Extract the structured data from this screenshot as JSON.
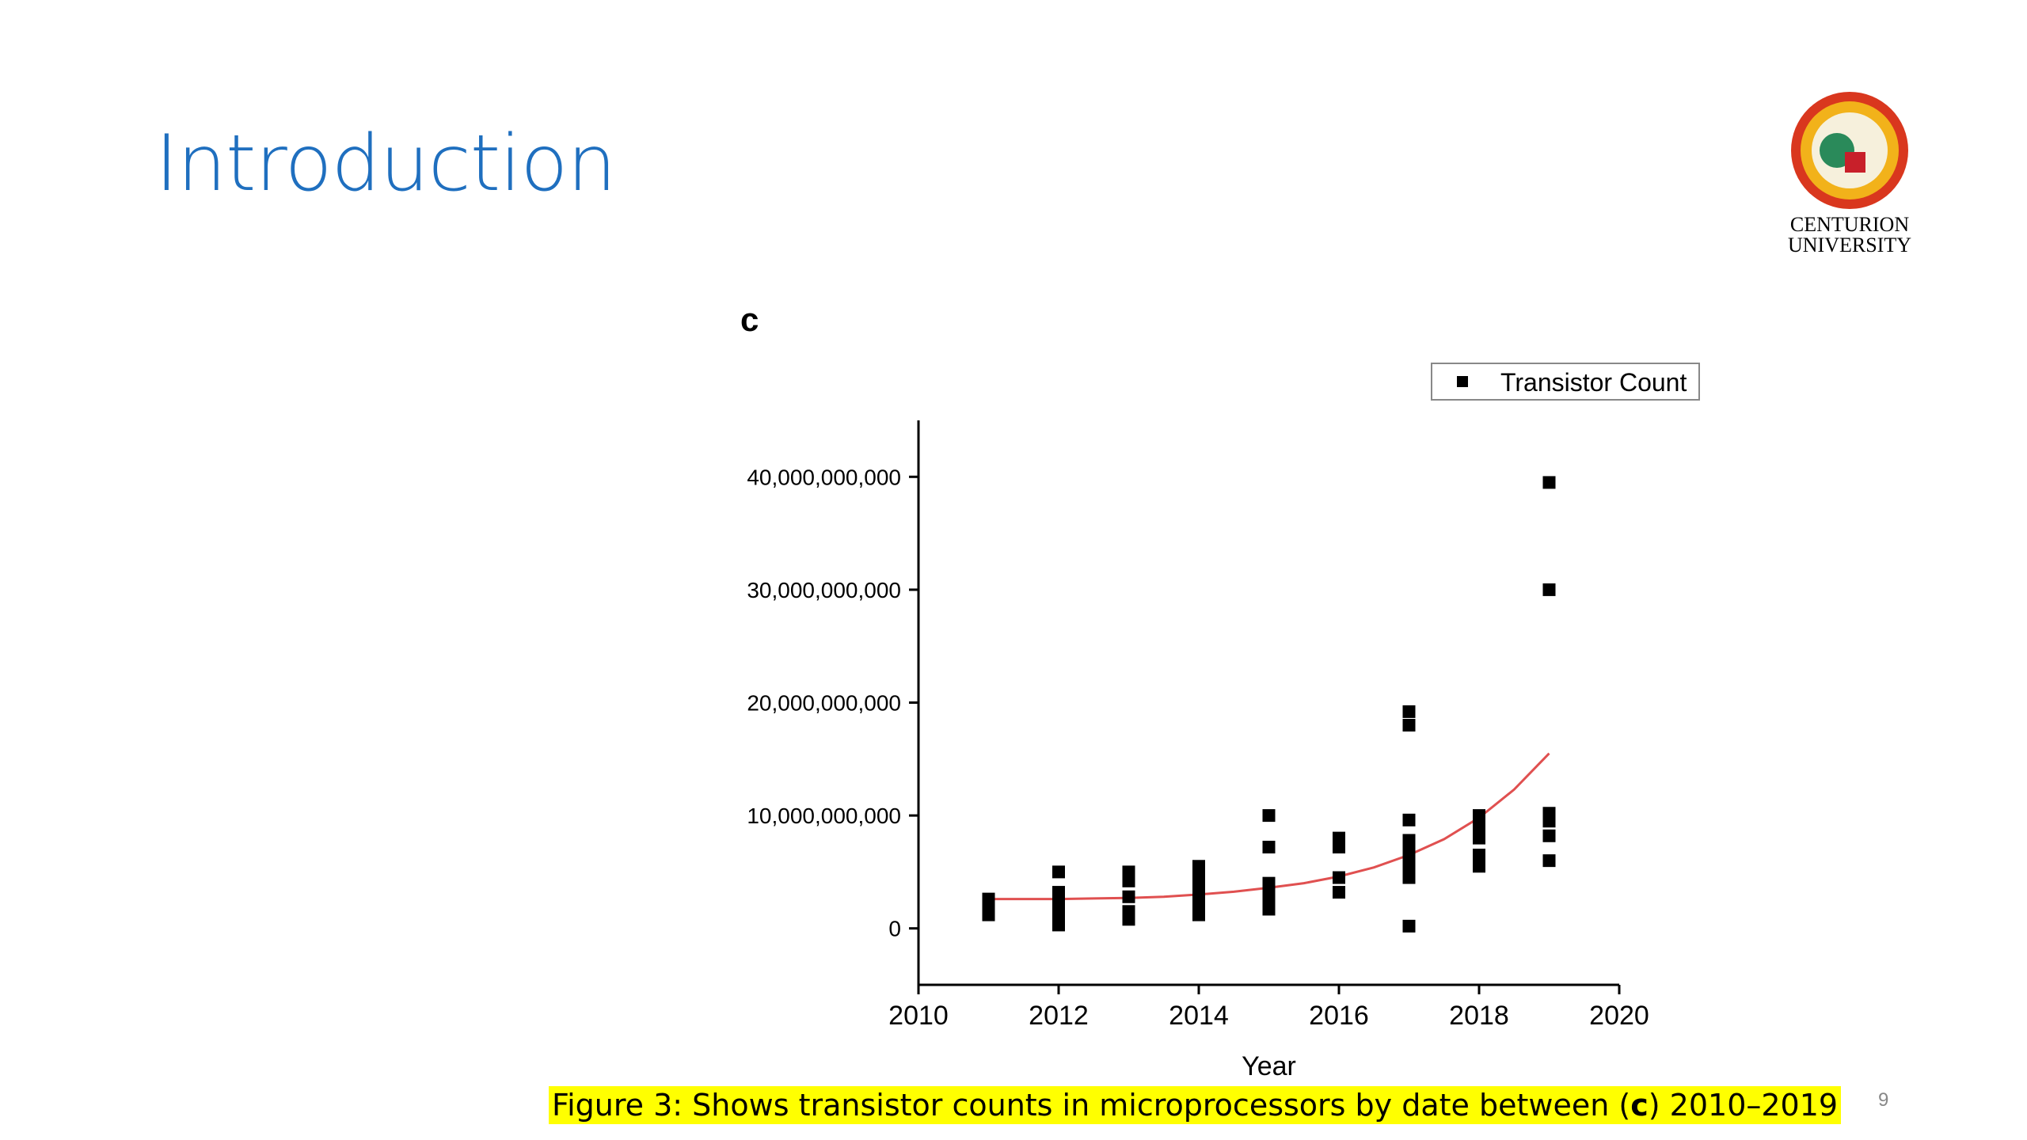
{
  "title": "Introduction",
  "logo": {
    "line1": "CENTURION",
    "line2": "UNIVERSITY"
  },
  "caption": {
    "before": "Figure 3: Shows transistor counts in microprocessors by date between (",
    "bold": "c",
    "after": ") 2010–2019"
  },
  "page_number": "9",
  "chart_data": {
    "type": "scatter",
    "panel_label": "c",
    "x_label": "Year",
    "xlim": [
      2010,
      2020
    ],
    "xticks": [
      2010,
      2012,
      2014,
      2016,
      2018,
      2020
    ],
    "ylim": [
      -5000000000.0,
      45000000000.0
    ],
    "yticks": [
      0,
      {
        "value": 10000000000,
        "label": "10,000,000,000"
      },
      {
        "value": 20000000000,
        "label": "20,000,000,000"
      },
      {
        "value": 30000000000,
        "label": "30,000,000,000"
      },
      {
        "value": 40000000000,
        "label": "40,000,000,000"
      }
    ],
    "legend": "top-right",
    "series": [
      {
        "name": "Transistor Count",
        "color": "#000000",
        "x": [
          2011,
          2011,
          2011,
          2012,
          2012,
          2012,
          2012,
          2012,
          2012,
          2013,
          2013,
          2013,
          2013,
          2013,
          2014,
          2014,
          2014,
          2014,
          2014,
          2014,
          2015,
          2015,
          2015,
          2015,
          2015,
          2015,
          2016,
          2016,
          2016,
          2016,
          2017,
          2017,
          2017,
          2017,
          2017,
          2017,
          2017,
          2017,
          2017,
          2018,
          2018,
          2018,
          2018,
          2018,
          2019,
          2019,
          2019,
          2019,
          2019,
          2019
        ],
        "values": [
          1200000000.0,
          1800000000.0,
          2600000000.0,
          5000000000.0,
          3200000000.0,
          2500000000.0,
          1800000000.0,
          1000000000.0,
          300000000.0,
          5000000000.0,
          4200000000.0,
          2800000000.0,
          1500000000.0,
          800000000.0,
          5500000000.0,
          4500000000.0,
          3500000000.0,
          2800000000.0,
          1800000000.0,
          1200000000.0,
          10000000000.0,
          7200000000.0,
          4000000000.0,
          3200000000.0,
          2500000000.0,
          1700000000.0,
          8000000000.0,
          7200000000.0,
          4500000000.0,
          3200000000.0,
          19200000000.0,
          18000000000.0,
          9600000000.0,
          7800000000.0,
          7000000000.0,
          6000000000.0,
          5500000000.0,
          4500000000.0,
          200000000.0,
          10000000000.0,
          9000000000.0,
          8000000000.0,
          6500000000.0,
          5500000000.0,
          39500000000.0,
          30000000000.0,
          10200000000.0,
          9500000000.0,
          8200000000.0,
          6000000000.0
        ]
      }
    ],
    "fit": {
      "color": "#e05050",
      "x": [
        2011,
        2011.5,
        2012,
        2012.5,
        2013,
        2013.5,
        2014,
        2014.5,
        2015,
        2015.5,
        2016,
        2016.5,
        2017,
        2017.5,
        2018,
        2018.5,
        2019
      ],
      "values": [
        2600000000.0,
        2600000000.0,
        2600000000.0,
        2650000000.0,
        2700000000.0,
        2800000000.0,
        3000000000.0,
        3250000000.0,
        3600000000.0,
        4000000000.0,
        4600000000.0,
        5400000000.0,
        6500000000.0,
        7900000000.0,
        9800000000.0,
        12300000000.0,
        15500000000.0
      ]
    }
  }
}
